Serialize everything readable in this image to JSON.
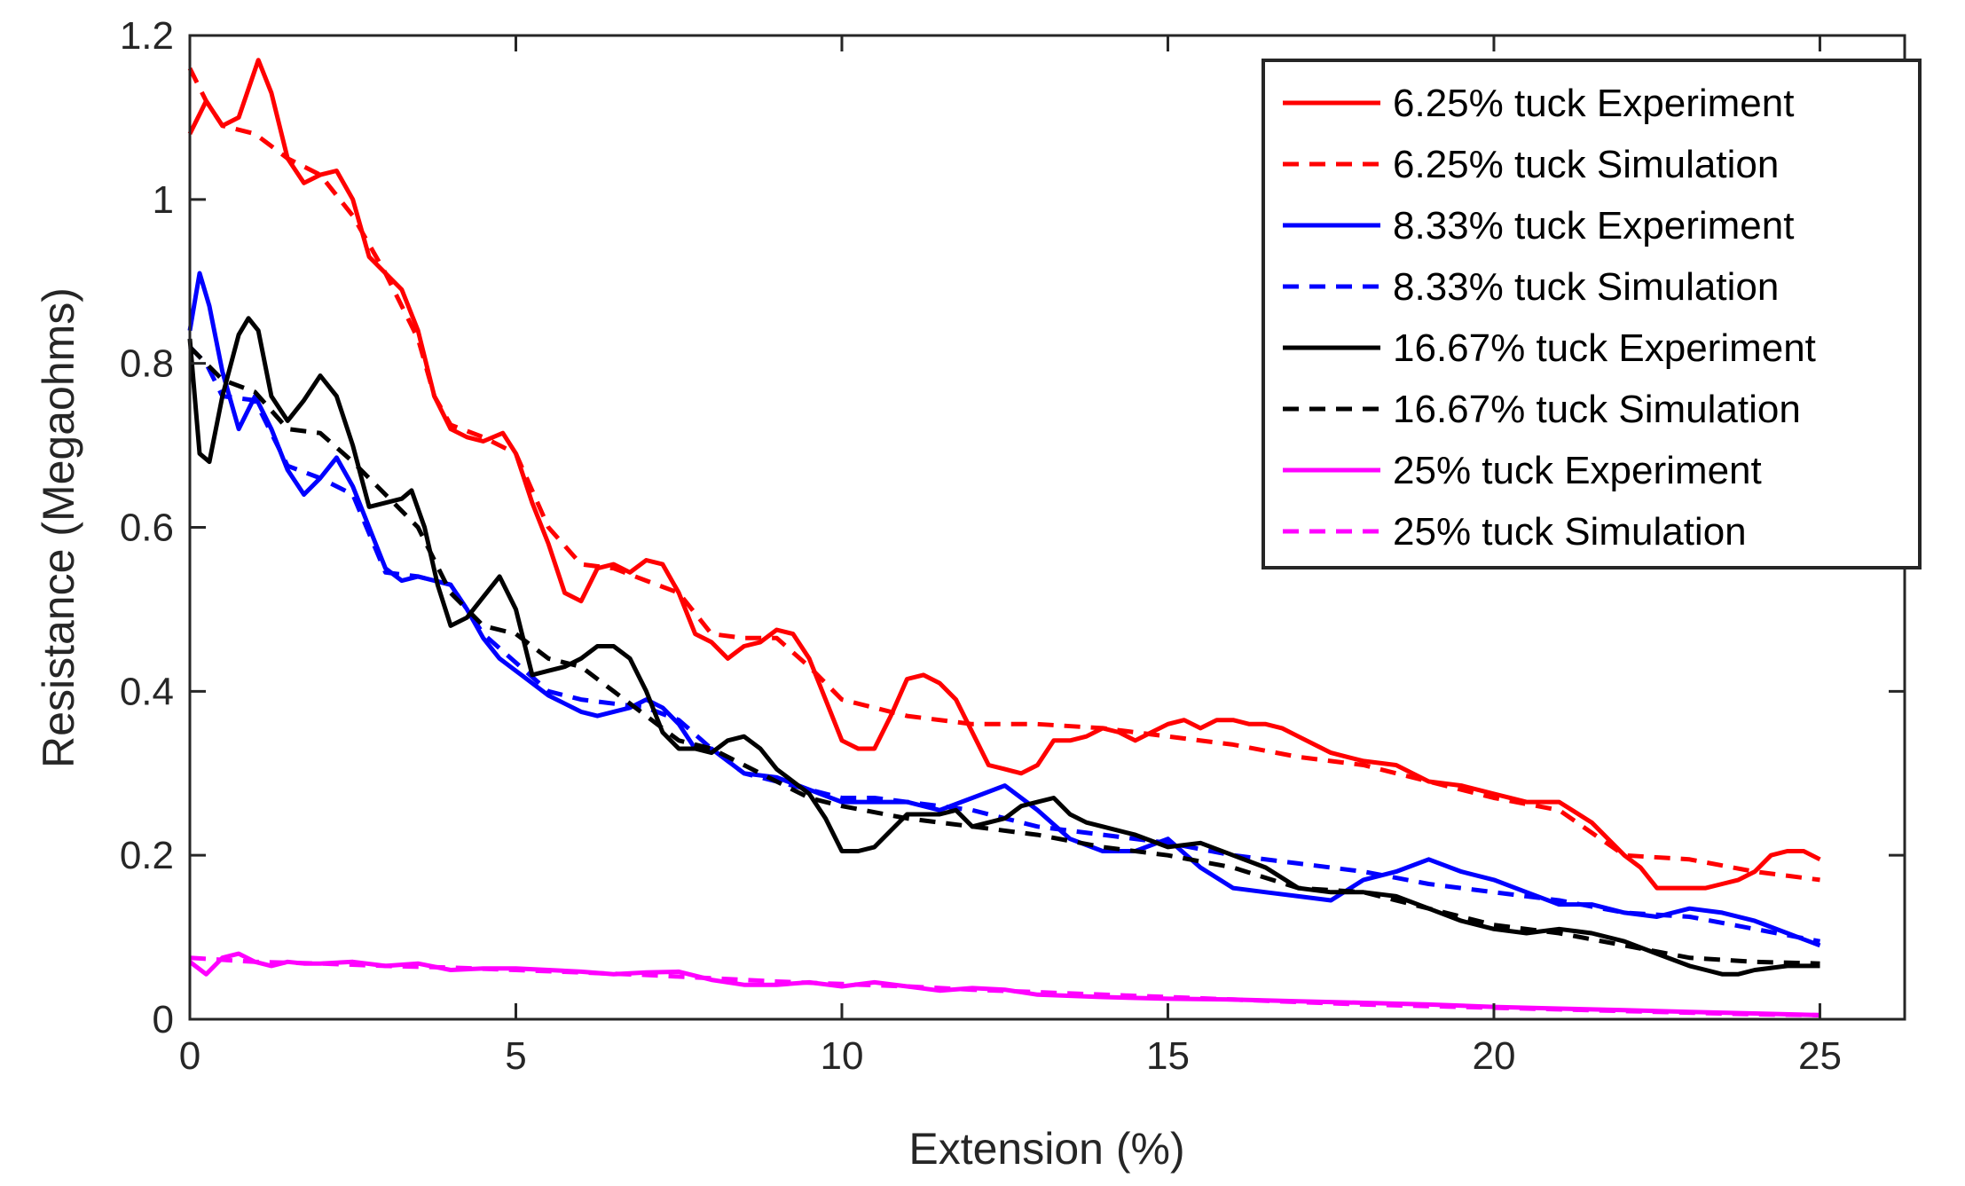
{
  "chart_data": {
    "type": "line",
    "title": "",
    "xlabel": "Extension (%)",
    "ylabel": "Resistance (Megaohms)",
    "xlim": [
      0,
      26.3
    ],
    "ylim": [
      0,
      1.2
    ],
    "xticks": [
      0,
      5,
      10,
      15,
      20,
      25
    ],
    "yticks": [
      0,
      0.2,
      0.4,
      0.6,
      0.8,
      1,
      1.2
    ],
    "xtick_labels": [
      "0",
      "5",
      "10",
      "15",
      "20",
      "25"
    ],
    "ytick_labels": [
      "0",
      "0.2",
      "0.4",
      "0.6",
      "0.8",
      "1",
      "1.2"
    ],
    "grid": false,
    "legend_position": "top-right",
    "series": [
      {
        "name": "6.25% tuck Experiment",
        "color": "#ff0000",
        "style": "solid",
        "x": [
          0,
          0.25,
          0.5,
          0.75,
          1.05,
          1.25,
          1.5,
          1.75,
          2,
          2.25,
          2.5,
          2.75,
          3,
          3.25,
          3.5,
          3.75,
          4,
          4.25,
          4.5,
          4.8,
          5,
          5.25,
          5.5,
          5.75,
          6,
          6.25,
          6.5,
          6.75,
          7,
          7.25,
          7.5,
          7.75,
          8,
          8.25,
          8.5,
          8.75,
          9,
          9.25,
          9.5,
          9.75,
          10,
          10.25,
          10.5,
          10.75,
          11,
          11.25,
          11.5,
          11.75,
          12,
          12.25,
          12.5,
          12.75,
          13,
          13.25,
          13.5,
          13.75,
          14,
          14.25,
          14.5,
          14.75,
          15,
          15.25,
          15.5,
          15.75,
          16,
          16.25,
          16.5,
          16.75,
          17,
          17.25,
          17.5,
          17.75,
          18,
          18.5,
          19,
          19.5,
          20,
          20.5,
          21,
          21.5,
          22,
          22.25,
          22.5,
          22.75,
          23,
          23.25,
          23.5,
          23.75,
          24,
          24.25,
          24.5,
          24.75,
          25
        ],
        "y": [
          1.08,
          1.12,
          1.09,
          1.1,
          1.17,
          1.13,
          1.05,
          1.02,
          1.03,
          1.035,
          1.0,
          0.93,
          0.91,
          0.89,
          0.84,
          0.76,
          0.72,
          0.71,
          0.705,
          0.715,
          0.69,
          0.63,
          0.58,
          0.52,
          0.51,
          0.55,
          0.555,
          0.545,
          0.56,
          0.555,
          0.52,
          0.47,
          0.46,
          0.44,
          0.455,
          0.46,
          0.475,
          0.47,
          0.44,
          0.39,
          0.34,
          0.33,
          0.33,
          0.37,
          0.415,
          0.42,
          0.41,
          0.39,
          0.35,
          0.31,
          0.305,
          0.3,
          0.31,
          0.34,
          0.34,
          0.345,
          0.355,
          0.35,
          0.34,
          0.35,
          0.36,
          0.365,
          0.355,
          0.365,
          0.365,
          0.36,
          0.36,
          0.355,
          0.345,
          0.335,
          0.325,
          0.32,
          0.315,
          0.31,
          0.29,
          0.285,
          0.275,
          0.265,
          0.265,
          0.24,
          0.2,
          0.185,
          0.16,
          0.16,
          0.16,
          0.16,
          0.165,
          0.17,
          0.18,
          0.2,
          0.205,
          0.205,
          0.195
        ]
      },
      {
        "name": "6.25% tuck Simulation",
        "color": "#ff0000",
        "style": "dashed",
        "x": [
          0,
          0.25,
          0.5,
          1,
          1.5,
          2,
          2.5,
          3,
          3.5,
          3.75,
          4,
          4.5,
          5,
          5.5,
          6,
          6.5,
          7,
          7.5,
          8,
          8.5,
          9,
          9.5,
          10,
          11,
          12,
          13,
          14,
          15,
          16,
          17,
          18,
          19,
          20,
          21,
          22,
          23,
          24,
          25
        ],
        "y": [
          1.16,
          1.12,
          1.09,
          1.08,
          1.05,
          1.03,
          0.98,
          0.91,
          0.83,
          0.76,
          0.725,
          0.71,
          0.69,
          0.6,
          0.555,
          0.55,
          0.535,
          0.52,
          0.47,
          0.465,
          0.465,
          0.43,
          0.39,
          0.37,
          0.36,
          0.36,
          0.355,
          0.345,
          0.335,
          0.32,
          0.31,
          0.29,
          0.27,
          0.255,
          0.2,
          0.195,
          0.18,
          0.17
        ]
      },
      {
        "name": "8.33% tuck Experiment",
        "color": "#0000ff",
        "style": "solid",
        "x": [
          0,
          0.15,
          0.3,
          0.5,
          0.75,
          1,
          1.25,
          1.5,
          1.75,
          2,
          2.25,
          2.5,
          2.75,
          3,
          3.25,
          3.5,
          3.75,
          4,
          4.25,
          4.5,
          4.75,
          5,
          5.25,
          5.5,
          5.75,
          6,
          6.25,
          6.5,
          6.75,
          7,
          7.25,
          7.5,
          7.75,
          8,
          8.5,
          9,
          9.5,
          10,
          10.5,
          11,
          11.5,
          12,
          12.5,
          13,
          13.5,
          14,
          14.5,
          15,
          15.5,
          16,
          16.5,
          17,
          17.5,
          18,
          18.5,
          19,
          19.5,
          20,
          20.5,
          21,
          21.5,
          22,
          22.5,
          23,
          23.5,
          24,
          24.5,
          25
        ],
        "y": [
          0.84,
          0.91,
          0.87,
          0.79,
          0.72,
          0.76,
          0.72,
          0.67,
          0.64,
          0.66,
          0.685,
          0.65,
          0.6,
          0.55,
          0.535,
          0.54,
          0.535,
          0.53,
          0.5,
          0.465,
          0.44,
          0.425,
          0.41,
          0.395,
          0.385,
          0.375,
          0.37,
          0.375,
          0.38,
          0.39,
          0.38,
          0.36,
          0.33,
          0.33,
          0.3,
          0.295,
          0.28,
          0.265,
          0.265,
          0.265,
          0.255,
          0.27,
          0.285,
          0.255,
          0.22,
          0.205,
          0.205,
          0.22,
          0.185,
          0.16,
          0.155,
          0.15,
          0.145,
          0.17,
          0.18,
          0.195,
          0.18,
          0.17,
          0.155,
          0.14,
          0.14,
          0.13,
          0.125,
          0.135,
          0.13,
          0.12,
          0.105,
          0.09
        ]
      },
      {
        "name": "8.33% tuck Simulation",
        "color": "#0000ff",
        "style": "dashed",
        "x": [
          0,
          0.25,
          0.5,
          1,
          1.5,
          2,
          2.5,
          3,
          3.5,
          4,
          4.5,
          5,
          5.5,
          6,
          6.5,
          7,
          7.5,
          8,
          8.5,
          9,
          9.5,
          10,
          10.5,
          11,
          12,
          13,
          14,
          15,
          16,
          17,
          18,
          19,
          20,
          21,
          22,
          23,
          24,
          25
        ],
        "y": [
          0.82,
          0.8,
          0.76,
          0.755,
          0.675,
          0.66,
          0.64,
          0.545,
          0.54,
          0.53,
          0.47,
          0.435,
          0.4,
          0.39,
          0.385,
          0.38,
          0.365,
          0.33,
          0.3,
          0.29,
          0.28,
          0.27,
          0.27,
          0.265,
          0.255,
          0.235,
          0.225,
          0.215,
          0.2,
          0.19,
          0.18,
          0.165,
          0.155,
          0.145,
          0.13,
          0.125,
          0.11,
          0.095
        ]
      },
      {
        "name": "16.67% tuck Experiment",
        "color": "#000000",
        "style": "solid",
        "x": [
          0,
          0.15,
          0.3,
          0.5,
          0.75,
          0.9,
          1.05,
          1.25,
          1.5,
          1.75,
          2,
          2.25,
          2.5,
          2.75,
          3,
          3.25,
          3.4,
          3.6,
          3.8,
          4,
          4.25,
          4.5,
          4.75,
          5,
          5.25,
          5.5,
          5.75,
          6,
          6.25,
          6.5,
          6.75,
          7,
          7.25,
          7.5,
          7.75,
          8,
          8.25,
          8.5,
          8.75,
          9,
          9.25,
          9.5,
          9.75,
          10,
          10.25,
          10.5,
          10.75,
          11,
          11.25,
          11.5,
          11.75,
          12,
          12.25,
          12.5,
          12.75,
          13,
          13.25,
          13.5,
          13.75,
          14,
          14.5,
          15,
          15.5,
          16,
          16.5,
          17,
          17.5,
          18,
          18.5,
          19,
          19.5,
          20,
          20.5,
          21,
          21.5,
          22,
          22.5,
          23,
          23.25,
          23.5,
          23.75,
          24,
          24.5,
          25
        ],
        "y": [
          0.83,
          0.69,
          0.68,
          0.76,
          0.835,
          0.855,
          0.84,
          0.76,
          0.73,
          0.755,
          0.785,
          0.76,
          0.7,
          0.625,
          0.63,
          0.635,
          0.645,
          0.6,
          0.53,
          0.48,
          0.49,
          0.515,
          0.54,
          0.5,
          0.42,
          0.425,
          0.43,
          0.44,
          0.455,
          0.455,
          0.44,
          0.4,
          0.35,
          0.33,
          0.33,
          0.325,
          0.34,
          0.345,
          0.33,
          0.305,
          0.29,
          0.275,
          0.245,
          0.205,
          0.205,
          0.21,
          0.23,
          0.25,
          0.25,
          0.25,
          0.255,
          0.235,
          0.24,
          0.245,
          0.26,
          0.265,
          0.27,
          0.25,
          0.24,
          0.235,
          0.225,
          0.21,
          0.215,
          0.2,
          0.185,
          0.16,
          0.155,
          0.155,
          0.15,
          0.135,
          0.12,
          0.11,
          0.105,
          0.11,
          0.105,
          0.095,
          0.08,
          0.065,
          0.06,
          0.055,
          0.055,
          0.06,
          0.065,
          0.065
        ]
      },
      {
        "name": "16.67% tuck Simulation",
        "color": "#000000",
        "style": "dashed",
        "x": [
          0,
          0.25,
          0.5,
          1,
          1.5,
          2,
          2.5,
          3,
          3.5,
          4,
          4.5,
          5,
          5.5,
          6,
          6.5,
          7,
          7.5,
          8,
          8.5,
          9,
          9.5,
          10,
          11,
          12,
          13,
          14,
          15,
          16,
          17,
          18,
          19,
          20,
          21,
          22,
          23,
          24,
          25
        ],
        "y": [
          0.82,
          0.8,
          0.78,
          0.765,
          0.72,
          0.715,
          0.68,
          0.64,
          0.6,
          0.52,
          0.48,
          0.47,
          0.44,
          0.43,
          0.4,
          0.37,
          0.34,
          0.33,
          0.31,
          0.29,
          0.27,
          0.26,
          0.245,
          0.235,
          0.225,
          0.21,
          0.2,
          0.185,
          0.16,
          0.155,
          0.135,
          0.115,
          0.105,
          0.09,
          0.075,
          0.07,
          0.068
        ]
      },
      {
        "name": "25% tuck Experiment",
        "color": "#ff00ff",
        "style": "solid",
        "x": [
          0,
          0.25,
          0.5,
          0.75,
          1,
          1.25,
          1.5,
          1.75,
          2,
          2.5,
          3,
          3.5,
          4,
          4.5,
          5,
          5.5,
          6,
          6.5,
          7,
          7.5,
          8,
          8.5,
          9,
          9.5,
          10,
          10.5,
          11,
          11.5,
          12,
          12.5,
          13,
          14,
          15,
          16,
          17,
          18,
          19,
          20,
          21,
          22,
          23,
          24,
          25
        ],
        "y": [
          0.07,
          0.055,
          0.075,
          0.08,
          0.07,
          0.065,
          0.07,
          0.068,
          0.068,
          0.07,
          0.065,
          0.068,
          0.06,
          0.062,
          0.062,
          0.06,
          0.058,
          0.055,
          0.057,
          0.058,
          0.048,
          0.042,
          0.042,
          0.045,
          0.04,
          0.045,
          0.04,
          0.035,
          0.038,
          0.036,
          0.03,
          0.027,
          0.025,
          0.024,
          0.022,
          0.02,
          0.018,
          0.015,
          0.013,
          0.011,
          0.009,
          0.007,
          0.005
        ]
      },
      {
        "name": "25% tuck Simulation",
        "color": "#ff00ff",
        "style": "dashed",
        "x": [
          0,
          1,
          2,
          3,
          4,
          5,
          6,
          7,
          8,
          9,
          10,
          11,
          12,
          13,
          14,
          15,
          16,
          17,
          18,
          19,
          20,
          21,
          22,
          23,
          24,
          25
        ],
        "y": [
          0.075,
          0.07,
          0.068,
          0.065,
          0.063,
          0.06,
          0.057,
          0.054,
          0.05,
          0.046,
          0.043,
          0.04,
          0.036,
          0.033,
          0.03,
          0.027,
          0.024,
          0.021,
          0.018,
          0.016,
          0.014,
          0.012,
          0.01,
          0.008,
          0.006,
          0.005
        ]
      }
    ]
  }
}
